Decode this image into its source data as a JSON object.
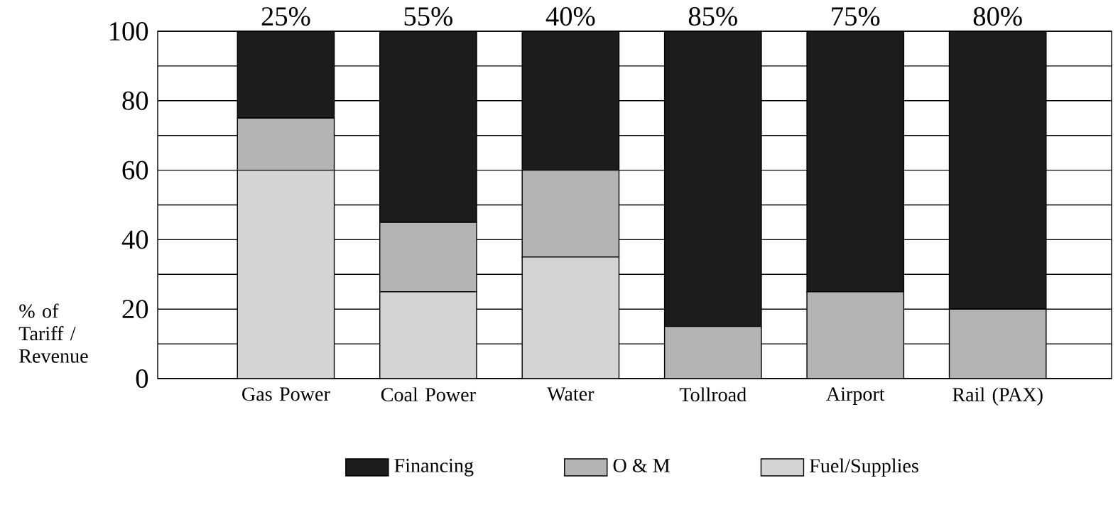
{
  "chart_data": {
    "type": "bar",
    "stacked": true,
    "ylabel": "% of Tariff / Revenue",
    "categories": [
      "Gas Power",
      "Coal Power",
      "Water",
      "Tollroad",
      "Airport",
      "Rail (PAX)"
    ],
    "series": [
      {
        "name": "Fuel/Supplies",
        "color": "#d4d4d4",
        "values": [
          60,
          25,
          35,
          null,
          null,
          null
        ]
      },
      {
        "name": "O & M",
        "color": "#b4b4b4",
        "values": [
          15,
          20,
          25,
          15,
          25,
          20
        ]
      },
      {
        "name": "Financing",
        "color": "#1c1c1c",
        "values": [
          25,
          55,
          40,
          85,
          75,
          80
        ],
        "value_labels": [
          "25%",
          "55%",
          "40%",
          "85%",
          "75%",
          "80%"
        ]
      }
    ],
    "ylim": [
      0,
      100
    ],
    "yticks": [
      0,
      {
        "value": 10,
        "label": null
      },
      20,
      {
        "value": 30,
        "label": null
      },
      40,
      {
        "value": 50,
        "label": null
      },
      60,
      {
        "value": 70,
        "label": null
      },
      80,
      {
        "value": 90,
        "label": null
      },
      100
    ],
    "grid": "y",
    "legend": "bottom"
  }
}
